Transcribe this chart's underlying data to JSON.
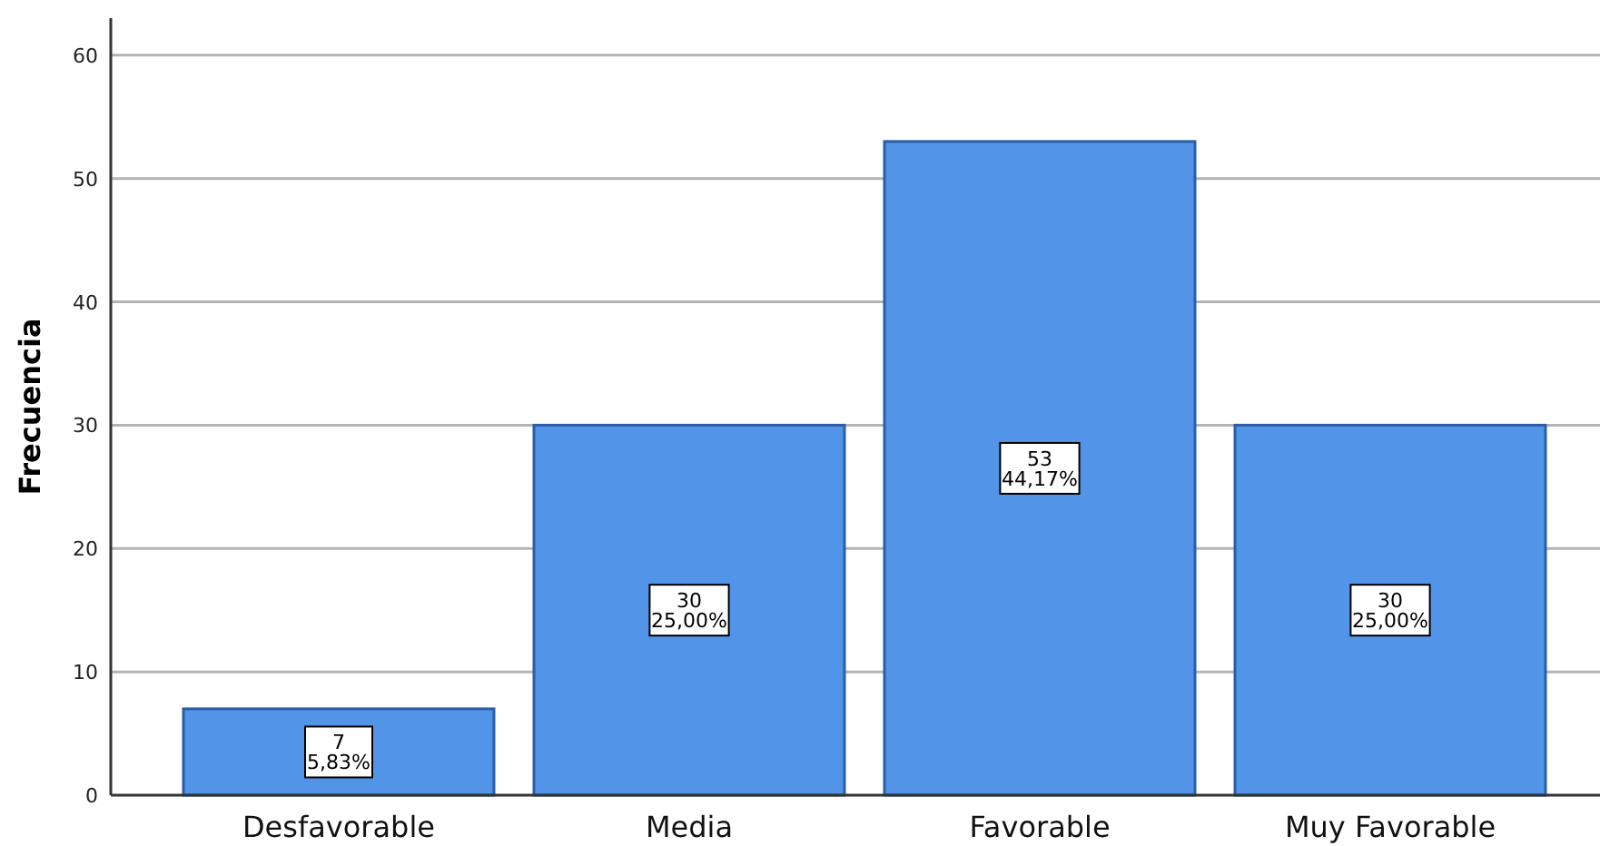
{
  "chart_data": {
    "type": "bar",
    "ylabel": "Frecuencia",
    "categories": [
      "Desfavorable",
      "Media",
      "Favorable",
      "Muy Favorable"
    ],
    "values": [
      7,
      30,
      53,
      30
    ],
    "color": "#5294e8",
    "value_labels": [
      "7\n5,83%",
      "30\n25,00%",
      "53\n44,17%",
      "30\n25,00%"
    ],
    "ylim": [
      0,
      63
    ],
    "yticks": [
      0,
      10,
      20,
      30,
      40,
      50,
      60
    ],
    "grid": "y"
  }
}
